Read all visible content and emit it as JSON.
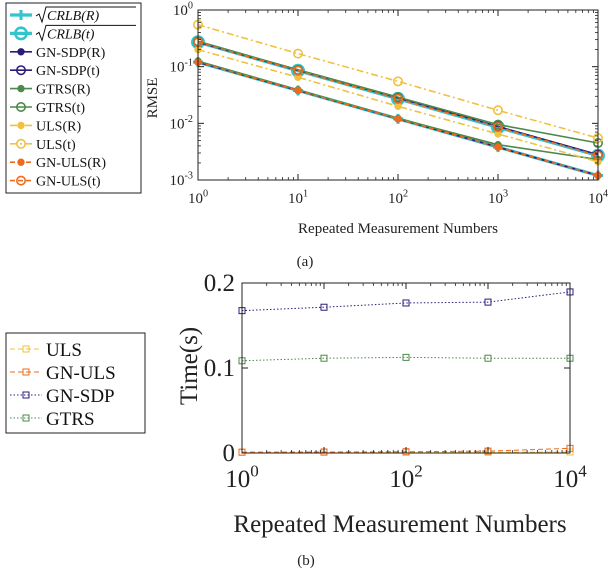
{
  "chart_data": [
    {
      "id": "a",
      "type": "line",
      "caption": "(a)",
      "xlabel": "Repeated Measurement Numbers",
      "ylabel": "RMSE",
      "xscale": "log",
      "yscale": "log",
      "xlim": [
        1,
        10000
      ],
      "ylim": [
        0.001,
        1
      ],
      "xticks": [
        1,
        10,
        100,
        1000,
        10000
      ],
      "xtick_labels": [
        {
          "b": "10",
          "e": "0"
        },
        {
          "b": "10",
          "e": "1"
        },
        {
          "b": "10",
          "e": "2"
        },
        {
          "b": "10",
          "e": "3"
        },
        {
          "b": "10",
          "e": "4"
        }
      ],
      "yticks": [
        0.001,
        0.01,
        0.1,
        1
      ],
      "ytick_labels": [
        {
          "b": "10",
          "e": "-3"
        },
        {
          "b": "10",
          "e": "-2"
        },
        {
          "b": "10",
          "e": "-1"
        },
        {
          "b": "10",
          "e": "0"
        }
      ],
      "grid": false,
      "legend_position": "outside-left",
      "x": [
        1,
        10,
        100,
        1000,
        10000
      ],
      "series": [
        {
          "name": "√CRLB(R)",
          "legend_math": "CRLB(R)",
          "values": [
            0.12,
            0.038,
            0.012,
            0.0038,
            0.0012
          ],
          "color": "#33c4cc",
          "dash": "solid",
          "marker": "plus",
          "width": 3.2
        },
        {
          "name": "√CRLB(t)",
          "legend_math": "CRLB(t)",
          "values": [
            0.27,
            0.085,
            0.027,
            0.0085,
            0.0027
          ],
          "color": "#33c4cc",
          "dash": "solid",
          "marker": "circle",
          "width": 3.2
        },
        {
          "name": "GN-SDP(R)",
          "values": [
            0.12,
            0.038,
            0.012,
            0.0038,
            0.0012
          ],
          "color": "#2a1d7a",
          "dash": "solid",
          "marker": "dot",
          "width": 1.6
        },
        {
          "name": "GN-SDP(t)",
          "values": [
            0.27,
            0.086,
            0.028,
            0.0088,
            0.0028
          ],
          "color": "#2a1d7a",
          "dash": "solid",
          "marker": "circle",
          "width": 1.6
        },
        {
          "name": "GTRS(R)",
          "values": [
            0.125,
            0.039,
            0.0122,
            0.0042,
            0.0023
          ],
          "color": "#4a8a4a",
          "dash": "solid",
          "marker": "dot",
          "width": 1.6
        },
        {
          "name": "GTRS(t)",
          "values": [
            0.28,
            0.088,
            0.029,
            0.0095,
            0.0045
          ],
          "color": "#4a8a4a",
          "dash": "solid",
          "marker": "circle",
          "width": 1.6
        },
        {
          "name": "ULS(R)",
          "values": [
            0.2,
            0.065,
            0.02,
            0.0065,
            0.0021
          ],
          "color": "#f0c040",
          "dash": "dashdot",
          "marker": "dot",
          "width": 1.6
        },
        {
          "name": "ULS(t)",
          "values": [
            0.55,
            0.17,
            0.055,
            0.017,
            0.0055
          ],
          "color": "#f0c040",
          "dash": "dashdot",
          "marker": "circle",
          "width": 1.6
        },
        {
          "name": "GN-ULS(R)",
          "values": [
            0.12,
            0.038,
            0.012,
            0.0038,
            0.0012
          ],
          "color": "#ee6a1c",
          "dash": "dashed",
          "marker": "dot",
          "width": 1.6
        },
        {
          "name": "GN-ULS(t)",
          "values": [
            0.27,
            0.085,
            0.027,
            0.0086,
            0.0027
          ],
          "color": "#ee6a1c",
          "dash": "dashed",
          "marker": "circle",
          "width": 1.6
        }
      ]
    },
    {
      "id": "b",
      "type": "line",
      "caption": "(b)",
      "xlabel": "Repeated Measurement Numbers",
      "ylabel": "Time(s)",
      "xscale": "log",
      "yscale": "linear",
      "xlim": [
        1,
        10000
      ],
      "ylim": [
        0,
        0.2
      ],
      "xticks": [
        1,
        100,
        10000
      ],
      "xtick_labels": [
        {
          "b": "10",
          "e": "0"
        },
        {
          "b": "10",
          "e": "2"
        },
        {
          "b": "10",
          "e": "4"
        }
      ],
      "yticks": [
        0,
        0.1,
        0.2
      ],
      "ytick_labels": [
        "0",
        "0.1",
        "0.2"
      ],
      "grid": false,
      "legend_position": "outside-left",
      "x": [
        1,
        10,
        100,
        1000,
        10000
      ],
      "series": [
        {
          "name": "ULS",
          "values": [
            0.0008,
            0.0008,
            0.0009,
            0.0009,
            0.0012
          ],
          "color": "#f0c040",
          "dash": "dashed",
          "marker": "square",
          "width": 1
        },
        {
          "name": "GN-ULS",
          "values": [
            0.001,
            0.0012,
            0.0015,
            0.0022,
            0.0055
          ],
          "color": "#ee6a1c",
          "dash": "dashed",
          "marker": "square",
          "width": 1
        },
        {
          "name": "GN-SDP",
          "values": [
            0.1675,
            0.1715,
            0.1765,
            0.1775,
            0.1895
          ],
          "color": "#2a1d7a",
          "dash": "dotted",
          "marker": "square",
          "width": 1
        },
        {
          "name": "GTRS",
          "values": [
            0.1085,
            0.1115,
            0.1125,
            0.1115,
            0.1115
          ],
          "color": "#4a8a4a",
          "dash": "dotted",
          "marker": "square",
          "width": 1
        }
      ]
    }
  ]
}
